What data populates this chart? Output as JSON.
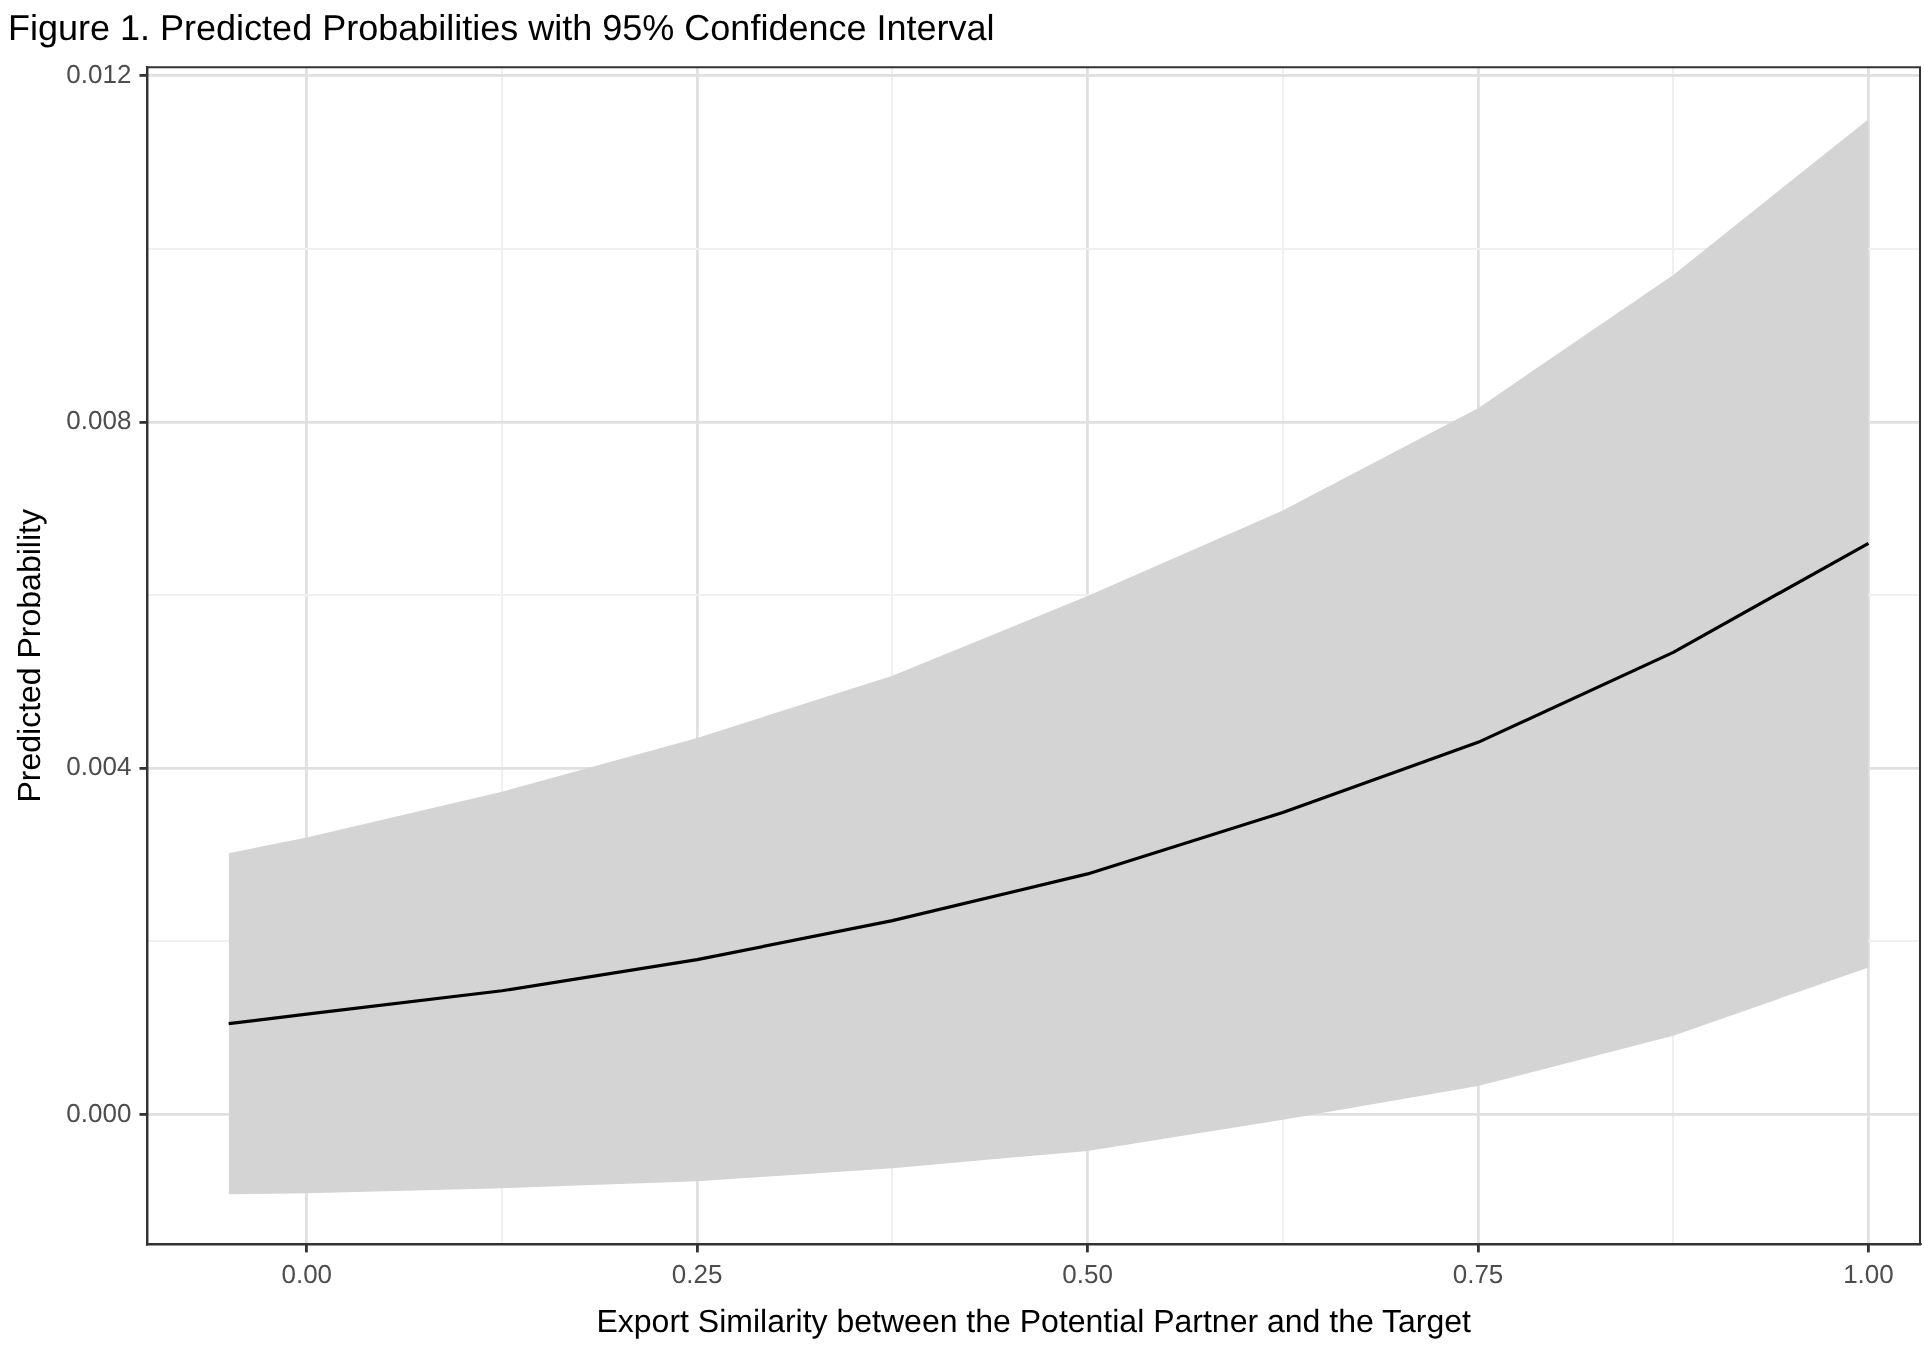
{
  "chart_data": {
    "type": "line",
    "title": "Figure 1. Predicted Probabilities with 95% Confidence Interval",
    "xlabel": "Export Similarity between the Potential Partner and the Target",
    "ylabel": "Predicted Probability",
    "x": [
      -0.05,
      0,
      0.125,
      0.25,
      0.375,
      0.5,
      0.625,
      0.75,
      0.875,
      1.0
    ],
    "series": [
      {
        "color": "#000000",
        "values": [
          0.00105,
          0.00116,
          0.00143,
          0.00179,
          0.00224,
          0.00278,
          0.00349,
          0.0043,
          0.00534,
          0.0066
        ],
        "lower": [
          -0.00092,
          -0.00091,
          -0.00085,
          -0.00077,
          -0.00062,
          -0.00042,
          -6e-05,
          0.00033,
          0.00091,
          0.0017
        ],
        "upper": [
          0.00302,
          0.0032,
          0.00373,
          0.00435,
          0.00507,
          0.00599,
          0.00698,
          0.00816,
          0.0097,
          0.0115
        ]
      }
    ],
    "xlim": [
      -0.102,
      1.033
    ],
    "ylim": [
      -0.0015,
      0.0121
    ],
    "xticks": [
      {
        "value": 0,
        "label": "0.00"
      },
      {
        "value": 0.125,
        "label": null
      },
      {
        "value": 0.25,
        "label": "0.25"
      },
      {
        "value": 0.375,
        "label": null
      },
      {
        "value": 0.5,
        "label": "0.50"
      },
      {
        "value": 0.625,
        "label": null
      },
      {
        "value": 0.75,
        "label": "0.75"
      },
      {
        "value": 0.875,
        "label": null
      },
      {
        "value": 1,
        "label": "1.00"
      }
    ],
    "yticks": [
      {
        "value": 0,
        "label": "0.000"
      },
      {
        "value": 0.002,
        "label": null
      },
      {
        "value": 0.004,
        "label": "0.004"
      },
      {
        "value": 0.006,
        "label": null
      },
      {
        "value": 0.008,
        "label": "0.008"
      },
      {
        "value": 0.01,
        "label": null
      },
      {
        "value": 0.012,
        "label": "0.012"
      }
    ],
    "grid": true,
    "legend": false,
    "marker": "none",
    "line_style": "solid"
  }
}
